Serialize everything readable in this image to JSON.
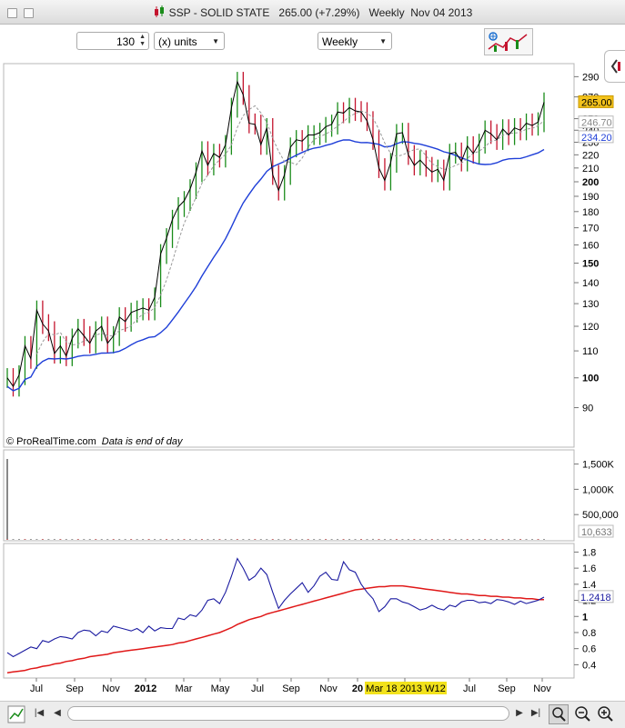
{
  "window": {
    "title": "SSP - SOLID STATE",
    "price_change": "265.00 (+7.29%)",
    "period": "Weekly",
    "date": "Nov 04 2013"
  },
  "toolbar": {
    "bar_count": "130",
    "units_label": "(x) units",
    "period_select": "Weekly"
  },
  "price_panel": {
    "watermark": "© ProRealTime.com",
    "note": "Data is end of day",
    "y_ticks": [
      "290",
      "270",
      "265.00",
      "250",
      "246.70",
      "240",
      "234.20",
      "230",
      "220",
      "210",
      "200",
      "190",
      "180",
      "170",
      "160",
      "150",
      "140",
      "130",
      "120",
      "110",
      "100",
      "90"
    ],
    "labels": {
      "last": "265.00",
      "ma_short": "246.70",
      "ma_long": "234.20"
    },
    "colors": {
      "last_bg": "#f2c21c",
      "ma_long": "#1f3fd8",
      "ma_short": "#999999",
      "up": "#1a8c1a",
      "down": "#c4142e"
    }
  },
  "volume_panel": {
    "y_ticks": [
      "1,500K",
      "1,000K",
      "500,000"
    ],
    "last_label": "10,633"
  },
  "indicator_panel": {
    "y_ticks": [
      "1.8",
      "1.6",
      "1.4",
      "1.2",
      "1",
      "0.8",
      "0.6",
      "0.4"
    ],
    "last_label": "1.2418",
    "colors": {
      "line": "#1a1aa0",
      "signal": "#e01818"
    }
  },
  "x_axis": {
    "labels": [
      "Jul",
      "Sep",
      "Nov",
      "2012",
      "Mar",
      "May",
      "Jul",
      "Sep",
      "Nov",
      "20",
      "Mar 18 2013 W12",
      "Jul",
      "Sep",
      "Nov"
    ],
    "highlight": "Mar 18 2013 W12"
  },
  "chart_data": {
    "type": "line",
    "x_start": "2011-05",
    "x_end": "2013-11-04",
    "ylim": [
      84,
      296
    ],
    "scale": "log",
    "series": [
      {
        "name": "price_close",
        "values": [
          100,
          97,
          101,
          112,
          107,
          127,
          121,
          118,
          109,
          112,
          108,
          115,
          119,
          116,
          113,
          118,
          120,
          113,
          116,
          124,
          122,
          126,
          127,
          128,
          127,
          133,
          155,
          164,
          175,
          183,
          187,
          195,
          207,
          223,
          212,
          221,
          218,
          228,
          260,
          285,
          272,
          246,
          245,
          228,
          242,
          205,
          194,
          205,
          226,
          232,
          231,
          236,
          236,
          238,
          243,
          245,
          256,
          255,
          260,
          257,
          256,
          248,
          232,
          210,
          201,
          214,
          237,
          238,
          220,
          212,
          216,
          211,
          207,
          209,
          201,
          221,
          222,
          215,
          227,
          221,
          229,
          240,
          237,
          232,
          241,
          236,
          242,
          240,
          246,
          244,
          247,
          265
        ]
      },
      {
        "name": "volume_k",
        "values": [
          12,
          8,
          6,
          10,
          9,
          11,
          7,
          6,
          9,
          10,
          8,
          8,
          11,
          9,
          7,
          8,
          12,
          9,
          14,
          9,
          6,
          8,
          10,
          9,
          11,
          13,
          9,
          8,
          12,
          14,
          10,
          9,
          15,
          12,
          10,
          11,
          9,
          10,
          12,
          14,
          11,
          16,
          10,
          8,
          9,
          15,
          12,
          10,
          9,
          11,
          8,
          7,
          9,
          10,
          11,
          6,
          9,
          10,
          8,
          7,
          10,
          12,
          20,
          15,
          11,
          8,
          9,
          10,
          14,
          12,
          8,
          9,
          10,
          11,
          8,
          10,
          7,
          9,
          11,
          8,
          6,
          9,
          12,
          10,
          8,
          9,
          7,
          10,
          9,
          8,
          9,
          10.6
        ]
      },
      {
        "name": "indicator",
        "values": [
          0.55,
          0.5,
          0.54,
          0.58,
          0.62,
          0.6,
          0.7,
          0.68,
          0.72,
          0.75,
          0.74,
          0.72,
          0.8,
          0.83,
          0.82,
          0.76,
          0.82,
          0.8,
          0.88,
          0.86,
          0.84,
          0.82,
          0.85,
          0.8,
          0.88,
          0.82,
          0.86,
          0.85,
          0.85,
          0.98,
          0.96,
          1.02,
          1.0,
          1.08,
          1.2,
          1.22,
          1.16,
          1.3,
          1.5,
          1.72,
          1.6,
          1.45,
          1.5,
          1.6,
          1.52,
          1.3,
          1.1,
          1.2,
          1.28,
          1.35,
          1.42,
          1.3,
          1.38,
          1.5,
          1.55,
          1.46,
          1.45,
          1.68,
          1.58,
          1.55,
          1.4,
          1.3,
          1.22,
          1.06,
          1.12,
          1.22,
          1.22,
          1.18,
          1.16,
          1.12,
          1.08,
          1.1,
          1.14,
          1.1,
          1.08,
          1.14,
          1.12,
          1.18,
          1.2,
          1.2,
          1.17,
          1.18,
          1.16,
          1.21,
          1.2,
          1.18,
          1.15,
          1.19,
          1.16,
          1.18,
          1.2,
          1.24
        ]
      },
      {
        "name": "signal",
        "values": [
          0.3,
          0.31,
          0.32,
          0.33,
          0.35,
          0.36,
          0.38,
          0.39,
          0.41,
          0.42,
          0.44,
          0.45,
          0.47,
          0.48,
          0.5,
          0.51,
          0.52,
          0.53,
          0.55,
          0.56,
          0.57,
          0.58,
          0.59,
          0.6,
          0.61,
          0.62,
          0.63,
          0.64,
          0.65,
          0.67,
          0.68,
          0.7,
          0.72,
          0.74,
          0.76,
          0.78,
          0.8,
          0.83,
          0.86,
          0.9,
          0.93,
          0.96,
          0.98,
          1.0,
          1.03,
          1.05,
          1.07,
          1.09,
          1.11,
          1.13,
          1.15,
          1.17,
          1.19,
          1.21,
          1.23,
          1.25,
          1.27,
          1.29,
          1.31,
          1.33,
          1.34,
          1.35,
          1.36,
          1.37,
          1.37,
          1.38,
          1.38,
          1.38,
          1.37,
          1.36,
          1.35,
          1.34,
          1.33,
          1.32,
          1.31,
          1.3,
          1.29,
          1.28,
          1.28,
          1.27,
          1.26,
          1.26,
          1.25,
          1.25,
          1.24,
          1.24,
          1.23,
          1.23,
          1.22,
          1.22,
          1.21,
          1.21
        ]
      }
    ]
  }
}
